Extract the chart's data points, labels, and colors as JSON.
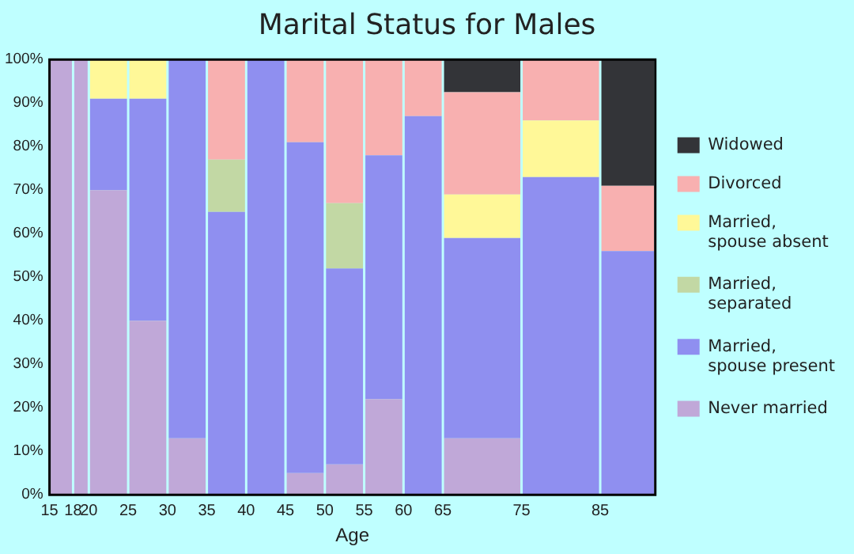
{
  "chart_data": {
    "type": "bar",
    "title": "Marital Status for Males",
    "xlabel": "Age",
    "stacked": true,
    "x": [
      16.5,
      19,
      22.5,
      27.5,
      32.5,
      37.5,
      42.5,
      47.5,
      52.5,
      57.5,
      62.5,
      70,
      80,
      88.5
    ],
    "xlim": [
      15,
      92
    ],
    "xticks": [
      15,
      18,
      20,
      25,
      30,
      35,
      40,
      45,
      50,
      55,
      60,
      65,
      75,
      85
    ],
    "ylim": [
      0,
      100
    ],
    "yticks": [
      {
        "value": 0,
        "label": "0%"
      },
      {
        "value": 10,
        "label": "10%"
      },
      {
        "value": 20,
        "label": "20%"
      },
      {
        "value": 30,
        "label": "30%"
      },
      {
        "value": 40,
        "label": "40%"
      },
      {
        "value": 50,
        "label": "50%"
      },
      {
        "value": 60,
        "label": "60%"
      },
      {
        "value": 70,
        "label": "70%"
      },
      {
        "value": 80,
        "label": "80%"
      },
      {
        "value": 90,
        "label": "90%"
      },
      {
        "value": 100,
        "label": "100%"
      }
    ],
    "grid": false,
    "legend": "right",
    "series": [
      {
        "name": "Never married",
        "color": "#c0a8d8",
        "values": [
          100,
          100,
          70,
          40,
          13,
          0,
          0,
          5,
          7,
          22,
          0,
          13,
          0,
          0
        ]
      },
      {
        "name": "Married, spouse present",
        "color": "#8f8ff0",
        "values": [
          0,
          0,
          21,
          51,
          87,
          65,
          100,
          76,
          45,
          56,
          87,
          46,
          73,
          56
        ]
      },
      {
        "name": "Married, separated",
        "color": "#c2d8a4",
        "values": [
          0,
          0,
          0,
          0,
          0,
          12,
          0,
          0,
          15,
          0,
          0,
          0,
          0,
          0
        ]
      },
      {
        "name": "Married, spouse absent",
        "color": "#fff898",
        "values": [
          0,
          0,
          9,
          9,
          0,
          0,
          0,
          0,
          0,
          0,
          0,
          10,
          13,
          0
        ]
      },
      {
        "name": "Divorced",
        "color": "#f8b0b0",
        "values": [
          0,
          0,
          0,
          0,
          0,
          23,
          0,
          19,
          33,
          22,
          13,
          23.5,
          14,
          15
        ]
      },
      {
        "name": "Widowed",
        "color": "#333438",
        "values": [
          0,
          0,
          0,
          0,
          0,
          0,
          0,
          0,
          0,
          0,
          0,
          7.5,
          0,
          29
        ]
      }
    ]
  }
}
